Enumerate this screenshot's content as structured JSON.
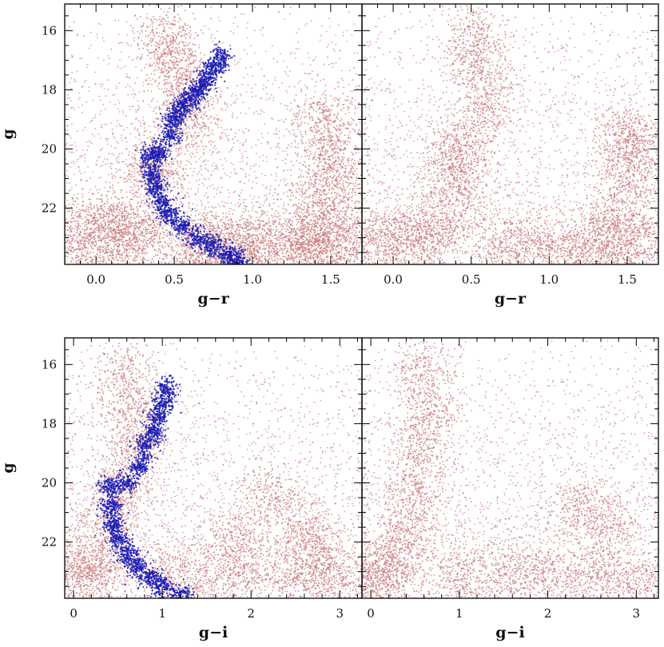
{
  "colors": {
    "field": "#c87a7a",
    "cluster": "#1a1ab4",
    "axis": "#000000"
  },
  "chart_data": [
    {
      "type": "scatter",
      "panel": "top-left",
      "xlabel": "g−r",
      "ylabel": "g",
      "xlim": [
        -0.2,
        1.7
      ],
      "ylim": [
        23.9,
        15.1
      ],
      "xticks": [
        0.0,
        0.5,
        1.0,
        1.5
      ],
      "xtick_labels": [
        "0.0",
        "0.5",
        "1.0",
        "1.5"
      ],
      "yticks": [
        16,
        18,
        20,
        22
      ],
      "ytick_labels": [
        "16",
        "18",
        "20",
        "22"
      ],
      "grid": false,
      "series": [
        {
          "color": "#c87a7a",
          "x": [
            0.45,
            0.5,
            0.55,
            0.6,
            0.4,
            0.35,
            0.3,
            0.7,
            0.9,
            1.1,
            1.3,
            1.4,
            1.5,
            1.6,
            1.45,
            1.55,
            1.5,
            1.45,
            1.35,
            0.2,
            0.1,
            0.0,
            -0.1,
            0.6,
            0.8,
            1.0
          ],
          "y": [
            16.3,
            17.0,
            18.0,
            19.0,
            20.3,
            21.0,
            22.8,
            23.0,
            23.1,
            23.2,
            23.0,
            22.0,
            21.0,
            22.5,
            23.3,
            23.5,
            20.0,
            19.0,
            23.4,
            23.0,
            22.8,
            22.5,
            23.2,
            23.5,
            23.6,
            23.7
          ]
        },
        {
          "color": "#1a1ab4",
          "x": [
            0.35,
            0.36,
            0.38,
            0.42,
            0.47,
            0.55,
            0.65,
            0.75,
            0.85,
            0.9,
            0.4,
            0.48,
            0.5,
            0.55,
            0.6,
            0.65,
            0.7,
            0.75,
            0.8
          ],
          "y": [
            20.2,
            20.8,
            21.3,
            21.8,
            22.2,
            22.6,
            23.0,
            23.3,
            23.6,
            23.8,
            20.1,
            19.5,
            19.0,
            18.6,
            18.3,
            18.0,
            17.7,
            17.3,
            16.9
          ]
        }
      ]
    },
    {
      "type": "scatter",
      "panel": "top-right",
      "xlabel": "g−r",
      "ylabel": "",
      "xlim": [
        -0.2,
        1.7
      ],
      "ylim": [
        23.9,
        15.1
      ],
      "xticks": [
        0.0,
        0.5,
        1.0,
        1.5
      ],
      "xtick_labels": [
        "0.0",
        "0.5",
        "1.0",
        "1.5"
      ],
      "yticks": [
        16,
        18,
        20,
        22
      ],
      "ytick_labels": [],
      "grid": false,
      "series": [
        {
          "color": "#c87a7a",
          "x": [
            0.5,
            0.55,
            0.6,
            0.45,
            0.4,
            0.38,
            0.3,
            0.2,
            0.0,
            -0.1,
            0.7,
            0.9,
            1.1,
            1.3,
            1.4,
            1.5,
            1.55,
            1.6,
            1.45,
            1.5
          ],
          "y": [
            16.2,
            17.2,
            18.5,
            19.8,
            20.5,
            21.3,
            22.8,
            23.0,
            22.9,
            23.2,
            23.1,
            23.3,
            23.4,
            23.2,
            22.5,
            21.0,
            20.0,
            22.8,
            23.5,
            19.5
          ]
        }
      ]
    },
    {
      "type": "scatter",
      "panel": "bottom-left",
      "xlabel": "g−i",
      "ylabel": "g",
      "xlim": [
        -0.1,
        3.25
      ],
      "ylim": [
        23.9,
        15.1
      ],
      "xticks": [
        0,
        1,
        2,
        3
      ],
      "xtick_labels": [
        "0",
        "1",
        "2",
        "3"
      ],
      "yticks": [
        16,
        18,
        20,
        22
      ],
      "ytick_labels": [
        "16",
        "18",
        "20",
        "22"
      ],
      "grid": false,
      "series": [
        {
          "color": "#c87a7a",
          "x": [
            0.6,
            0.65,
            0.7,
            0.5,
            0.4,
            0.3,
            0.2,
            0.0,
            1.0,
            1.5,
            2.0,
            2.5,
            2.8,
            3.0,
            2.6,
            2.2,
            1.8
          ],
          "y": [
            16.3,
            17.5,
            18.8,
            20.2,
            21.2,
            22.6,
            22.9,
            23.1,
            23.0,
            23.1,
            23.2,
            23.0,
            22.5,
            23.3,
            21.5,
            20.5,
            22.0
          ]
        },
        {
          "color": "#1a1ab4",
          "x": [
            0.4,
            0.42,
            0.45,
            0.5,
            0.6,
            0.7,
            0.85,
            1.0,
            1.2,
            0.6,
            0.75,
            0.8,
            0.9,
            0.95,
            1.0,
            1.05
          ],
          "y": [
            20.1,
            20.8,
            21.4,
            21.9,
            22.4,
            22.8,
            23.2,
            23.5,
            23.8,
            20.0,
            19.4,
            18.8,
            18.3,
            17.8,
            17.3,
            16.8
          ]
        }
      ]
    },
    {
      "type": "scatter",
      "panel": "bottom-right",
      "xlabel": "g−i",
      "ylabel": "",
      "xlim": [
        -0.1,
        3.25
      ],
      "ylim": [
        23.9,
        15.1
      ],
      "xticks": [
        0,
        1,
        2,
        3
      ],
      "xtick_labels": [
        "0",
        "1",
        "2",
        "3"
      ],
      "yticks": [
        16,
        18,
        20,
        22
      ],
      "ytick_labels": [],
      "grid": false,
      "series": [
        {
          "color": "#c87a7a",
          "x": [
            0.6,
            0.65,
            0.55,
            0.5,
            0.4,
            0.3,
            0.1,
            0.0,
            1.0,
            1.5,
            2.0,
            2.5,
            3.0,
            2.7,
            2.3
          ],
          "y": [
            16.2,
            17.5,
            18.8,
            20.3,
            21.5,
            22.7,
            23.0,
            23.2,
            23.1,
            23.0,
            23.2,
            23.0,
            23.3,
            21.5,
            20.8
          ]
        }
      ]
    }
  ]
}
